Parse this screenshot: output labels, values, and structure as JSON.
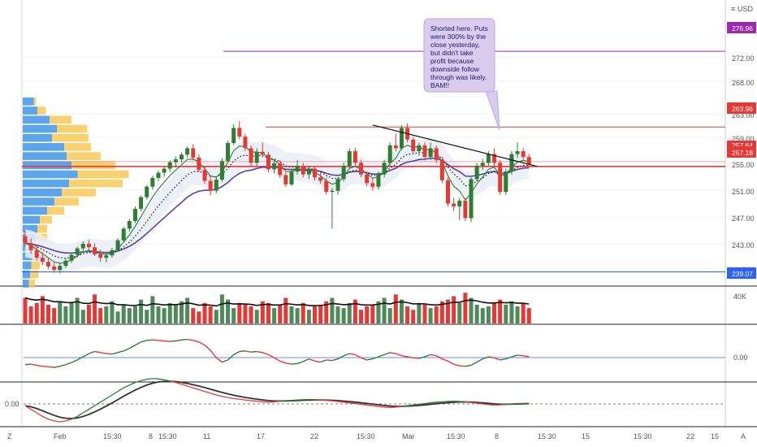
{
  "colors": {
    "up": "#2e7d32",
    "down": "#e53935",
    "vol_up": "#4f8a5b",
    "vol_down": "#e53935",
    "ma_fast": "#2e7d32",
    "ma_slow": "#5b3fa8",
    "ma_dotted": "#222222",
    "cloud": "#e9eef7",
    "profile_blue": "#3f95e6",
    "profile_yellow": "#f7c64c",
    "purple_level": "#9c27b0",
    "red_level": "#e53935",
    "blue_level": "#2962ff",
    "trendline": "#111111",
    "note_fill": "#d9ccef",
    "grid": "#f0f0f0"
  },
  "header": {
    "currency": "USD",
    "scale_mode": "Z"
  },
  "price_axis": {
    "ticks": [
      "276.00",
      "272.00",
      "268.00",
      "263.00",
      "259.00",
      "255.00",
      "251.00",
      "247.00",
      "243.00",
      "239.00"
    ],
    "badges": {
      "purple": "276.96",
      "red_top": "263.96",
      "last_price": "257.64",
      "red_mid": "257.18",
      "blue": "239.07"
    }
  },
  "volume_axis": {
    "tick": "40K"
  },
  "oscillator_axis": {
    "tick": "0.00"
  },
  "macd_axis": {
    "tick": "0.00"
  },
  "time_axis": {
    "labels": [
      "Feb",
      "15:30",
      "8",
      "15:30",
      "11",
      "17",
      "22",
      "15:30",
      "Mar",
      "15:30",
      "8",
      "15:30",
      "15",
      "15:30",
      "22",
      "15"
    ],
    "corner_left": "Z",
    "corner_right": "A"
  },
  "annotation": {
    "lines": [
      "Shorted here. Puts",
      "were 300% by the",
      "close yesterday,",
      "but didn't take",
      "profit because",
      "downside follow",
      "through was likely.",
      "BAM!!"
    ]
  },
  "chart_data": {
    "type": "candlestick",
    "y_range": [
      237.0,
      279.0
    ],
    "candles": [
      [
        245.2,
        246.2,
        243.5,
        244.0
      ],
      [
        244.0,
        244.8,
        242.2,
        242.8
      ],
      [
        242.8,
        243.5,
        241.0,
        241.5
      ],
      [
        241.5,
        242.5,
        240.2,
        240.8
      ],
      [
        240.8,
        241.6,
        239.5,
        240.0
      ],
      [
        240.0,
        240.8,
        238.9,
        239.4
      ],
      [
        239.4,
        240.5,
        238.8,
        240.1
      ],
      [
        240.1,
        241.4,
        239.7,
        241.0
      ],
      [
        241.0,
        242.4,
        240.6,
        242.0
      ],
      [
        242.0,
        243.4,
        241.5,
        243.1
      ],
      [
        243.1,
        244.3,
        242.5,
        243.9
      ],
      [
        243.9,
        244.6,
        242.8,
        243.3
      ],
      [
        243.3,
        244.0,
        241.8,
        242.1
      ],
      [
        242.1,
        242.9,
        240.8,
        241.5
      ],
      [
        241.5,
        242.4,
        240.7,
        241.9
      ],
      [
        241.9,
        243.2,
        241.5,
        242.8
      ],
      [
        242.8,
        244.8,
        242.6,
        244.5
      ],
      [
        244.5,
        246.8,
        244.3,
        246.5
      ],
      [
        246.5,
        248.2,
        246.0,
        247.8
      ],
      [
        247.8,
        250.3,
        247.5,
        249.9
      ],
      [
        249.9,
        252.2,
        249.5,
        251.9
      ],
      [
        251.9,
        254.0,
        251.5,
        253.7
      ],
      [
        253.7,
        255.6,
        253.2,
        255.2
      ],
      [
        255.2,
        256.5,
        254.6,
        256.1
      ],
      [
        256.1,
        257.2,
        255.4,
        256.8
      ],
      [
        256.8,
        258.2,
        256.2,
        257.9
      ],
      [
        257.9,
        258.9,
        257.0,
        258.4
      ],
      [
        258.4,
        259.6,
        257.8,
        259.2
      ],
      [
        259.2,
        260.6,
        258.7,
        260.3
      ],
      [
        260.3,
        261.0,
        258.2,
        258.7
      ],
      [
        258.7,
        259.3,
        256.2,
        256.6
      ],
      [
        256.6,
        257.3,
        254.2,
        254.7
      ],
      [
        254.7,
        255.5,
        252.2,
        253.0
      ],
      [
        253.0,
        255.3,
        252.6,
        254.9
      ],
      [
        254.9,
        258.6,
        254.5,
        258.1
      ],
      [
        258.1,
        261.6,
        257.8,
        261.2
      ],
      [
        261.2,
        264.4,
        260.8,
        263.8
      ],
      [
        263.8,
        265.0,
        261.8,
        262.3
      ],
      [
        262.3,
        262.8,
        259.8,
        260.3
      ],
      [
        260.3,
        260.8,
        257.3,
        257.8
      ],
      [
        257.8,
        260.3,
        257.3,
        259.7
      ],
      [
        259.7,
        261.3,
        258.7,
        259.2
      ],
      [
        259.2,
        259.7,
        256.2,
        256.7
      ],
      [
        256.7,
        258.3,
        256.0,
        257.7
      ],
      [
        257.7,
        258.3,
        255.2,
        255.7
      ],
      [
        255.7,
        256.2,
        253.6,
        254.1
      ],
      [
        254.1,
        256.8,
        253.8,
        256.3
      ],
      [
        256.3,
        258.3,
        255.8,
        257.3
      ],
      [
        257.3,
        257.8,
        255.3,
        255.8
      ],
      [
        255.8,
        257.3,
        255.0,
        256.8
      ],
      [
        256.8,
        257.3,
        254.8,
        255.3
      ],
      [
        255.3,
        256.2,
        254.2,
        254.7
      ],
      [
        254.7,
        255.3,
        252.3,
        252.8
      ],
      [
        252.8,
        253.5,
        246.5,
        253.0
      ],
      [
        253.0,
        255.3,
        252.3,
        255.0
      ],
      [
        255.0,
        257.8,
        254.6,
        257.3
      ],
      [
        257.3,
        260.3,
        256.8,
        259.8
      ],
      [
        259.8,
        260.4,
        257.3,
        257.8
      ],
      [
        257.8,
        258.3,
        255.3,
        255.8
      ],
      [
        255.8,
        256.3,
        253.8,
        254.3
      ],
      [
        254.3,
        255.3,
        253.0,
        253.7
      ],
      [
        253.7,
        256.3,
        253.2,
        255.8
      ],
      [
        255.8,
        258.3,
        255.3,
        257.8
      ],
      [
        257.8,
        261.3,
        257.3,
        260.8
      ],
      [
        260.8,
        262.8,
        259.8,
        260.3
      ],
      [
        260.3,
        264.3,
        260.0,
        263.8
      ],
      [
        263.8,
        264.6,
        261.3,
        261.8
      ],
      [
        261.8,
        262.3,
        259.3,
        259.8
      ],
      [
        259.8,
        261.3,
        259.0,
        260.8
      ],
      [
        260.8,
        261.3,
        258.3,
        258.8
      ],
      [
        258.8,
        261.3,
        258.3,
        260.3
      ],
      [
        260.3,
        260.8,
        257.8,
        258.3
      ],
      [
        258.3,
        258.8,
        254.3,
        254.8
      ],
      [
        254.8,
        255.3,
        250.3,
        250.8
      ],
      [
        250.8,
        251.8,
        249.5,
        250.3
      ],
      [
        250.3,
        251.8,
        248.0,
        251.3
      ],
      [
        251.3,
        251.8,
        247.8,
        248.3
      ],
      [
        248.3,
        255.3,
        247.6,
        255.0
      ],
      [
        255.0,
        257.8,
        254.6,
        257.3
      ],
      [
        257.3,
        258.5,
        256.6,
        257.8
      ],
      [
        257.8,
        259.8,
        257.3,
        259.3
      ],
      [
        259.3,
        260.3,
        257.3,
        257.8
      ],
      [
        257.8,
        258.3,
        252.3,
        252.8
      ],
      [
        252.8,
        256.8,
        252.3,
        256.3
      ],
      [
        256.3,
        259.8,
        255.8,
        259.3
      ],
      [
        259.3,
        261.3,
        258.6,
        259.8
      ],
      [
        259.8,
        260.3,
        258.3,
        258.8
      ],
      [
        258.8,
        259.3,
        257.2,
        257.6
      ]
    ],
    "volume": [
      30,
      20,
      24,
      32,
      22,
      18,
      26,
      20,
      24,
      30,
      16,
      22,
      34,
      18,
      20,
      26,
      14,
      22,
      18,
      20,
      28,
      16,
      32,
      20,
      18,
      24,
      22,
      26,
      30,
      18,
      14,
      24,
      20,
      16,
      34,
      28,
      18,
      24,
      22,
      20,
      16,
      26,
      24,
      18,
      22,
      30,
      20,
      18,
      24,
      16,
      20,
      22,
      26,
      30,
      20,
      18,
      24,
      28,
      16,
      20,
      22,
      26,
      30,
      18,
      34,
      28,
      20,
      16,
      24,
      22,
      18,
      20,
      26,
      28,
      32,
      24,
      36,
      30,
      22,
      18,
      20,
      24,
      28,
      22,
      26,
      20,
      24,
      18
    ],
    "osc": [
      0.25,
      0.3,
      0.2,
      0.1,
      0.05,
      0.0,
      0.1,
      0.25,
      0.45,
      0.7,
      1.0,
      1.3,
      1.5,
      1.4,
      1.3,
      1.25,
      1.4,
      1.55,
      1.8,
      2.1,
      2.4,
      2.55,
      2.6,
      2.55,
      2.5,
      2.45,
      2.5,
      2.6,
      2.65,
      2.55,
      2.4,
      2.1,
      1.6,
      0.9,
      0.5,
      0.7,
      1.2,
      1.5,
      1.55,
      1.45,
      1.5,
      1.4,
      1.2,
      0.9,
      0.6,
      0.4,
      0.3,
      0.35,
      0.55,
      0.8,
      0.6,
      0.5,
      0.7,
      0.65,
      0.8,
      1.1,
      1.3,
      1.2,
      0.9,
      0.7,
      0.8,
      1.0,
      1.2,
      1.4,
      1.3,
      1.1,
      1.0,
      0.9,
      0.85,
      1.0,
      1.2,
      1.1,
      0.8,
      0.6,
      0.3,
      0.15,
      0.1,
      0.2,
      0.5,
      0.8,
      1.0,
      0.9,
      0.7,
      0.8,
      1.0,
      1.15,
      1.1,
      1.0
    ],
    "macd": [
      -0.1,
      -0.3,
      -0.5,
      -0.7,
      -0.85,
      -0.95,
      -1.0,
      -0.95,
      -0.85,
      -0.7,
      -0.5,
      -0.3,
      -0.1,
      0.1,
      0.3,
      0.5,
      0.7,
      0.9,
      1.05,
      1.2,
      1.3,
      1.38,
      1.42,
      1.4,
      1.35,
      1.28,
      1.2,
      1.1,
      1.0,
      0.9,
      0.8,
      0.7,
      0.6,
      0.5,
      0.42,
      0.36,
      0.3,
      0.26,
      0.22,
      0.18,
      0.15,
      0.12,
      0.1,
      0.12,
      0.15,
      0.18,
      0.2,
      0.22,
      0.24,
      0.25,
      0.24,
      0.22,
      0.2,
      0.17,
      0.14,
      0.1,
      0.06,
      0.02,
      -0.02,
      -0.06,
      -0.1,
      -0.14,
      -0.18,
      -0.2,
      -0.18,
      -0.14,
      -0.1,
      -0.06,
      -0.02,
      0.02,
      0.06,
      0.1,
      0.12,
      0.14,
      0.15,
      0.14,
      0.12,
      0.08,
      0.04,
      0.0,
      -0.04,
      -0.06,
      -0.05,
      -0.03,
      0.0,
      0.02,
      0.03,
      0.04
    ],
    "volume_profile": [
      {
        "blue": 9,
        "yellow": 2
      },
      {
        "blue": 12,
        "yellow": 7
      },
      {
        "blue": 22,
        "yellow": 18
      },
      {
        "blue": 28,
        "yellow": 25
      },
      {
        "blue": 24,
        "yellow": 30
      },
      {
        "blue": 34,
        "yellow": 22
      },
      {
        "blue": 36,
        "yellow": 28
      },
      {
        "blue": 40,
        "yellow": 36
      },
      {
        "blue": 45,
        "yellow": 42
      },
      {
        "blue": 38,
        "yellow": 44
      },
      {
        "blue": 32,
        "yellow": 28
      },
      {
        "blue": 26,
        "yellow": 20
      },
      {
        "blue": 20,
        "yellow": 14
      },
      {
        "blue": 14,
        "yellow": 10
      },
      {
        "blue": 12,
        "yellow": 8
      },
      {
        "blue": 10,
        "yellow": 10
      },
      {
        "blue": 9,
        "yellow": 9
      },
      {
        "blue": 8,
        "yellow": 8
      },
      {
        "blue": 7,
        "yellow": 7
      },
      {
        "blue": 6,
        "yellow": 7
      },
      {
        "blue": 5,
        "yellow": 5
      }
    ],
    "levels": {
      "purple": 276.96,
      "red_top": 263.96,
      "red_mid": 257.18,
      "blue": 239.07
    },
    "trendline": {
      "from": [
        60,
        264.3
      ],
      "to": [
        87,
        257.2
      ]
    }
  }
}
